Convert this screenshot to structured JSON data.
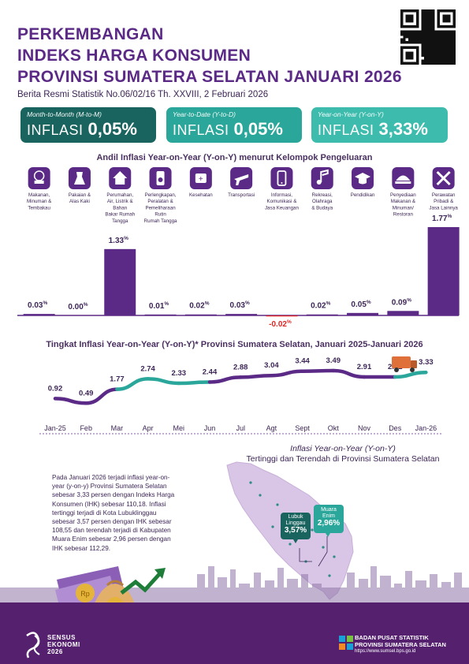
{
  "title": {
    "line1": "PERKEMBANGAN",
    "line2": "INDEKS HARGA KONSUMEN",
    "line3": "PROVINSI SUMATERA SELATAN JANUARI 2026",
    "subtitle": "Berita Resmi Statistik No.06/02/16 Th. XXVIII, 2 Februari 2026"
  },
  "kpis": [
    {
      "label": "Month-to-Month (M-to-M)",
      "name": "INFLASI",
      "value": "0,05%",
      "color": "#19645f"
    },
    {
      "label": "Year-to-Date (Y-to-D)",
      "name": "INFLASI",
      "value": "0,05%",
      "color": "#2aa79a"
    },
    {
      "label": "Year-on-Year (Y-on-Y)",
      "name": "INFLASI",
      "value": "3,33%",
      "color": "#3dbcae"
    }
  ],
  "colors": {
    "purple": "#5b2a86",
    "bar": "#5b2a86",
    "negative": "#e02424",
    "teal": "#2aa79a",
    "footer": "#55216f",
    "map": "#d7c2e3"
  },
  "chart_data": [
    {
      "type": "bar",
      "title": "Andil Inflasi Year-on-Year (Y-on-Y) menurut Kelompok Pengeluaran",
      "categories": [
        "Makanan, Minuman & Tembakau",
        "Pakaian & Alas Kaki",
        "Perumahan, Air, Listrik & Bahan Bakar Rumah Tangga",
        "Perlengkapan, Peralatan & Pemeliharaan Rutin Rumah Tangga",
        "Kesehatan",
        "Transportasi",
        "Informasi, Komunikasi & Jasa Keuangan",
        "Rekreasi, Olahraga & Budaya",
        "Pendidikan",
        "Penyediaan Makanan & Minuman/ Restoran",
        "Perawatan Pribadi & Jasa Lainnya"
      ],
      "category_lines": [
        [
          "Makanan,",
          "Minuman &",
          "Tembakau"
        ],
        [
          "Pakaian &",
          "Alas Kaki"
        ],
        [
          "Perumahan,",
          "Air, Listrik &",
          "Bahan",
          "Bakar Rumah",
          "Tangga"
        ],
        [
          "Perlengkapan,",
          "Peralatan &",
          "Pemeliharaan",
          "Rutin",
          "Rumah Tangga"
        ],
        [
          "Kesehatan"
        ],
        [
          "Transportasi"
        ],
        [
          "Informasi,",
          "Komunikasi &",
          "Jasa Keuangan"
        ],
        [
          "Rekreasi,",
          "Olahraga",
          "& Budaya"
        ],
        [
          "Pendidikan"
        ],
        [
          "Penyediaan",
          "Makanan &",
          "Minuman/",
          "Restoran"
        ],
        [
          "Perawatan",
          "Pribadi &",
          "Jasa Lainnya"
        ]
      ],
      "icons": [
        "food-icon",
        "dress-icon",
        "house-icon",
        "appliance-icon",
        "medicine-icon",
        "airplane-icon",
        "smartphone-icon",
        "music-icon",
        "graduation-cap-icon",
        "food-tray-icon",
        "tools-icon"
      ],
      "values": [
        0.03,
        0.0,
        1.33,
        0.01,
        0.02,
        0.03,
        -0.02,
        0.02,
        0.05,
        0.09,
        1.77
      ],
      "value_labels": [
        "0.03",
        "0.00",
        "1.33",
        "0.01",
        "0.02",
        "0.03",
        "-0.02",
        "0.02",
        "0.05",
        "0.09",
        "1.77"
      ],
      "unit": "%"
    },
    {
      "type": "line",
      "title": "Tingkat Inflasi Year-on-Year (Y-on-Y)* Provinsi Sumatera Selatan, Januari 2025-Januari 2026",
      "x": [
        "Jan-25",
        "Feb",
        "Mar",
        "Apr",
        "Mei",
        "Jun",
        "Jul",
        "Agt",
        "Sept",
        "Okt",
        "Nov",
        "Des",
        "Jan-26"
      ],
      "values": [
        0.92,
        0.49,
        1.77,
        2.74,
        2.33,
        2.44,
        2.88,
        3.04,
        3.44,
        3.49,
        2.91,
        2.91,
        3.33
      ],
      "value_labels": [
        "0.92",
        "0.49",
        "1.77",
        "2.74",
        "2.33",
        "2.44",
        "2.88",
        "3.04",
        "3.44",
        "3.49",
        "2.91",
        "2.91",
        "3.33"
      ],
      "series_colors": [
        "#5b2a86",
        "#2aa79a"
      ]
    }
  ],
  "map": {
    "title_line1": "Inflasi Year-on-Year (Y-on-Y)",
    "title_line2": "Tertinggi dan Terendah di Provinsi Sumatera Selatan",
    "high": {
      "city": "Lubuk Linggau",
      "city_lines": [
        "Lubuk",
        "Linggau"
      ],
      "value": "3,57%"
    },
    "low": {
      "city": "Muara Enim",
      "city_lines": [
        "Muara",
        "Enim"
      ],
      "value": "2,96%"
    }
  },
  "description": "Pada Januari 2026 terjadi inflasi year-on-year (y-on-y) Provinsi Sumatera Selatan sebesar 3,33 persen dengan Indeks Harga Konsumen (IHK) sebesar 110,18. Inflasi tertinggi terjadi di Kota Lubuklinggau sebesar 3,57 persen dengan IHK sebesar 108,55 dan terendah terjadi di Kabupaten Muara Enim sebesar 2,96 persen dengan IHK sebesar 112,29.",
  "footer": {
    "sensus_line1": "SENSUS",
    "sensus_line2": "EKONOMI",
    "sensus_line3": "2026",
    "bps_line1": "BADAN PUSAT STATISTIK",
    "bps_line2": "PROVINSI SUMATERA SELATAN",
    "bps_url": "https://www.sumsel.bps.go.id"
  }
}
